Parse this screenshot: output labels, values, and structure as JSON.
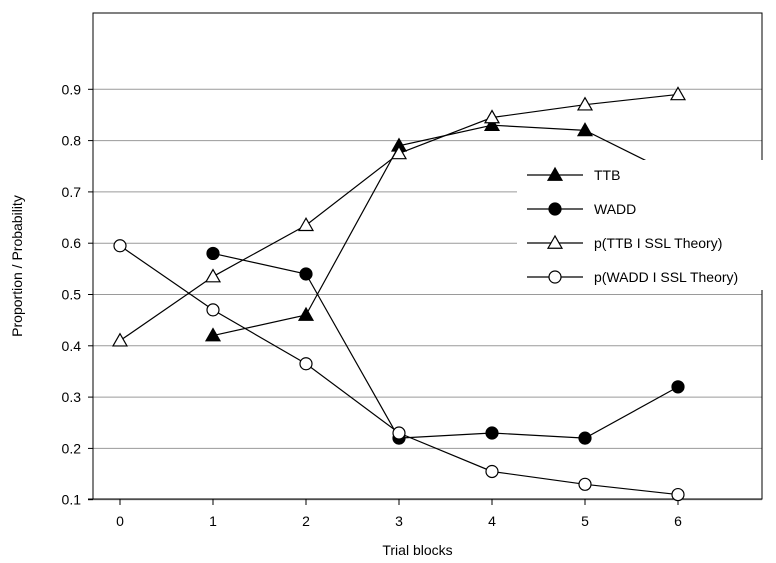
{
  "chart_data": {
    "type": "line",
    "xlabel": "Trial blocks",
    "ylabel": "Proportion / Probability",
    "x_ticks": [
      "0",
      "1",
      "2",
      "3",
      "4",
      "5",
      "6"
    ],
    "y_ticks": [
      "0.1",
      "0.2",
      "0.3",
      "0.4",
      "0.5",
      "0.6",
      "0.7",
      "0.8",
      "0.9"
    ],
    "xlim": [
      -0.3,
      6.9
    ],
    "ylim": [
      0.0,
      0.97
    ],
    "grid": "horizontal",
    "legend_position": "right",
    "series": [
      {
        "name": "TTB",
        "marker": "filled-triangle",
        "x": [
          1,
          2,
          3,
          4,
          5,
          6
        ],
        "values": [
          0.42,
          0.46,
          0.79,
          0.83,
          0.82,
          0.73
        ]
      },
      {
        "name": "WADD",
        "marker": "filled-circle",
        "x": [
          1,
          2,
          3,
          4,
          5,
          6
        ],
        "values": [
          0.58,
          0.54,
          0.22,
          0.23,
          0.22,
          0.32
        ]
      },
      {
        "name": "p(TTB I SSL Theory)",
        "marker": "open-triangle",
        "x": [
          0,
          1,
          2,
          3,
          4,
          5,
          6
        ],
        "values": [
          0.41,
          0.535,
          0.635,
          0.775,
          0.845,
          0.87,
          0.89
        ]
      },
      {
        "name": "p(WADD I SSL Theory)",
        "marker": "open-circle",
        "x": [
          0,
          1,
          2,
          3,
          4,
          5,
          6
        ],
        "values": [
          0.595,
          0.47,
          0.365,
          0.23,
          0.155,
          0.13,
          0.11
        ]
      }
    ]
  }
}
